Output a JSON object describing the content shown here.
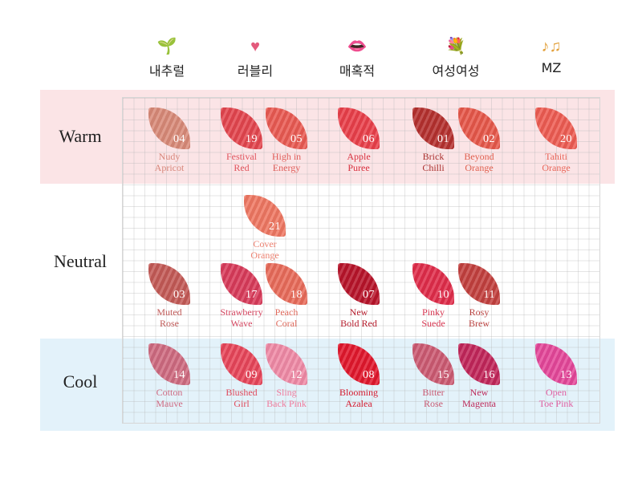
{
  "columns": [
    {
      "label": "내추럴",
      "icon": "sprout-icon",
      "glyph": "🌱",
      "color": "#3aa24a"
    },
    {
      "label": "러블리",
      "icon": "heart-icon",
      "glyph": "♥",
      "color": "#e35a7c"
    },
    {
      "label": "매혹적",
      "icon": "lips-icon",
      "glyph": "👄",
      "color": "#e0447a"
    },
    {
      "label": "여성여성",
      "icon": "flowers-icon",
      "glyph": "💐",
      "color": "#d48aa2"
    },
    {
      "label": "MZ",
      "icon": "music-notes-icon",
      "glyph": "♪♫",
      "color": "#e3a13c"
    }
  ],
  "rows": {
    "warm": "Warm",
    "neutral": "Neutral",
    "cool": "Cool"
  },
  "colors": {
    "warm_band": "#fbe4e6",
    "cool_band": "#e3f2fa"
  },
  "swatches": [
    {
      "id": "04",
      "name": "Nudy\nApricot",
      "color": "#d98a78",
      "text": "#d7867a"
    },
    {
      "id": "19",
      "name": "Festival\nRed",
      "color": "#e4454e",
      "text": "#e0545d"
    },
    {
      "id": "05",
      "name": "High in\nEnergy",
      "color": "#ea5a52",
      "text": "#e0605c"
    },
    {
      "id": "06",
      "name": "Apple\nPuree",
      "color": "#ea3f4a",
      "text": "#d8313f"
    },
    {
      "id": "01",
      "name": "Brick\nChilli",
      "color": "#b5302e",
      "text": "#a9302e"
    },
    {
      "id": "02",
      "name": "Beyond\nOrange",
      "color": "#e7574a",
      "text": "#e0604f"
    },
    {
      "id": "20",
      "name": "Tahiti\nOrange",
      "color": "#ee5c52",
      "text": "#e8675a"
    },
    {
      "id": "21",
      "name": "Cover\nOrange",
      "color": "#ef7762",
      "text": "#ec8070"
    },
    {
      "id": "03",
      "name": "Muted\nRose",
      "color": "#c45a56",
      "text": "#c05a58"
    },
    {
      "id": "17",
      "name": "Strawberry\nWave",
      "color": "#d93b5a",
      "text": "#d54660"
    },
    {
      "id": "18",
      "name": "Peach\nCoral",
      "color": "#e96b5a",
      "text": "#e06a5c"
    },
    {
      "id": "07",
      "name": "New\nBold Red",
      "color": "#b8142a",
      "text": "#b51c2c"
    },
    {
      "id": "10",
      "name": "Pinky\nSuede",
      "color": "#e02c4a",
      "text": "#d73550"
    },
    {
      "id": "11",
      "name": "Rosy\nBrew",
      "color": "#c3403e",
      "text": "#bc4442"
    },
    {
      "id": "14",
      "name": "Cotton\nMauve",
      "color": "#cf6a80",
      "text": "#cf6a82"
    },
    {
      "id": "09",
      "name": "Blushed\nGirl",
      "color": "#e8465a",
      "text": "#e04a5c"
    },
    {
      "id": "12",
      "name": "Sling\nBack Pink",
      "color": "#f08aa6",
      "text": "#f07b9c"
    },
    {
      "id": "08",
      "name": "Blooming\nAzalea",
      "color": "#e2172c",
      "text": "#d51a2e"
    },
    {
      "id": "15",
      "name": "Bitter\nRose",
      "color": "#cc5a72",
      "text": "#c95a72"
    },
    {
      "id": "16",
      "name": "New\nMagenta",
      "color": "#c2265a",
      "text": "#bd2a5a"
    },
    {
      "id": "13",
      "name": "Open\nToe Pink",
      "color": "#e5479a",
      "text": "#e060a2"
    }
  ]
}
